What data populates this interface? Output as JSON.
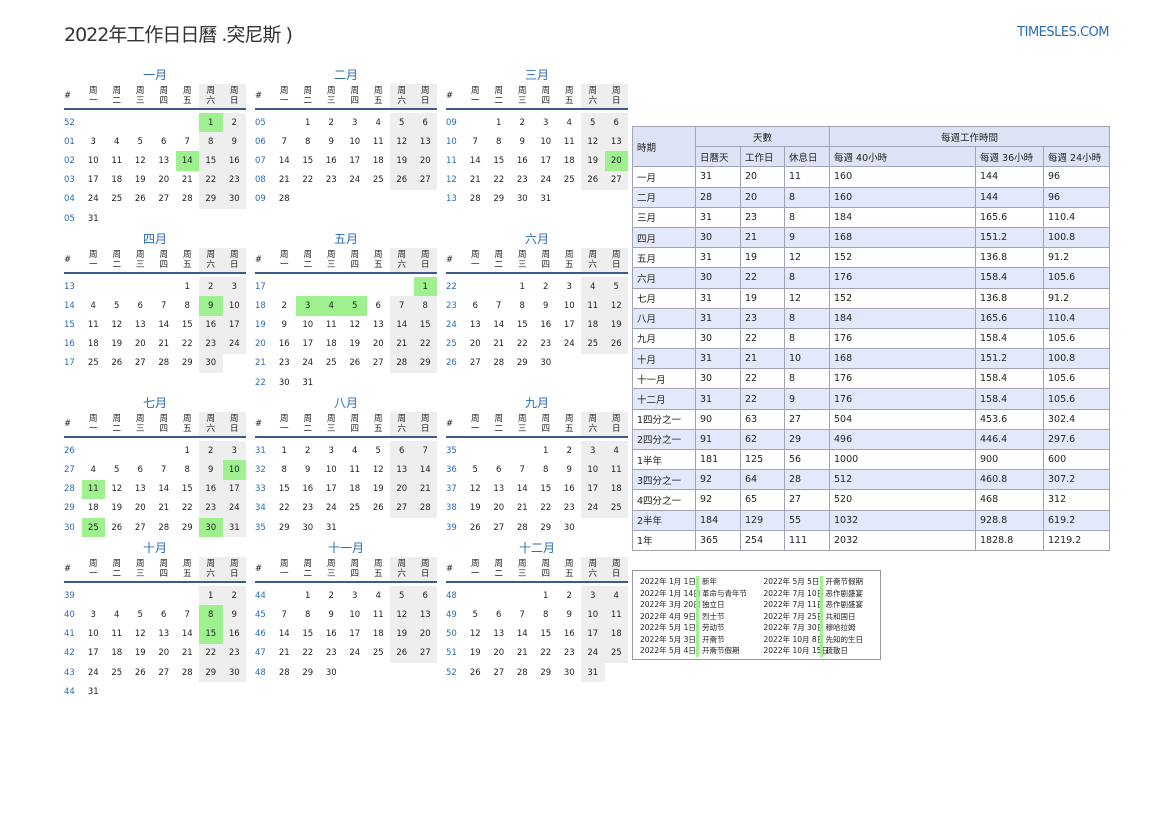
{
  "header": {
    "title": "2022年工作日日曆 .突尼斯 )",
    "site": "TIMESLES.COM"
  },
  "calendar": {
    "week_label": "#",
    "weekdays": [
      "周一",
      "周二",
      "周三",
      "周四",
      "周五",
      "周六",
      "周日"
    ],
    "months": [
      {
        "name": "一月",
        "highlight": [
          1,
          14
        ],
        "weeks": [
          {
            "week": "52",
            "days": [
              null,
              null,
              null,
              null,
              null,
              1,
              2
            ]
          },
          {
            "week": "01",
            "days": [
              3,
              4,
              5,
              6,
              7,
              8,
              9
            ]
          },
          {
            "week": "02",
            "days": [
              10,
              11,
              12,
              13,
              14,
              15,
              16
            ]
          },
          {
            "week": "03",
            "days": [
              17,
              18,
              19,
              20,
              21,
              22,
              23
            ]
          },
          {
            "week": "04",
            "days": [
              24,
              25,
              26,
              27,
              28,
              29,
              30
            ]
          },
          {
            "week": "05",
            "days": [
              31,
              null,
              null,
              null,
              null,
              null,
              null
            ]
          }
        ]
      },
      {
        "name": "二月",
        "highlight": [],
        "weeks": [
          {
            "week": "05",
            "days": [
              null,
              1,
              2,
              3,
              4,
              5,
              6
            ]
          },
          {
            "week": "06",
            "days": [
              7,
              8,
              9,
              10,
              11,
              12,
              13
            ]
          },
          {
            "week": "07",
            "days": [
              14,
              15,
              16,
              17,
              18,
              19,
              20
            ]
          },
          {
            "week": "08",
            "days": [
              21,
              22,
              23,
              24,
              25,
              26,
              27
            ]
          },
          {
            "week": "09",
            "days": [
              28,
              null,
              null,
              null,
              null,
              null,
              null
            ]
          }
        ]
      },
      {
        "name": "三月",
        "highlight": [
          20
        ],
        "weeks": [
          {
            "week": "09",
            "days": [
              null,
              1,
              2,
              3,
              4,
              5,
              6
            ]
          },
          {
            "week": "10",
            "days": [
              7,
              8,
              9,
              10,
              11,
              12,
              13
            ]
          },
          {
            "week": "11",
            "days": [
              14,
              15,
              16,
              17,
              18,
              19,
              20
            ]
          },
          {
            "week": "12",
            "days": [
              21,
              22,
              23,
              24,
              25,
              26,
              27
            ]
          },
          {
            "week": "13",
            "days": [
              28,
              29,
              30,
              31,
              null,
              null,
              null
            ]
          }
        ]
      },
      {
        "name": "四月",
        "highlight": [
          9
        ],
        "weeks": [
          {
            "week": "13",
            "days": [
              null,
              null,
              null,
              null,
              1,
              2,
              3
            ]
          },
          {
            "week": "14",
            "days": [
              4,
              5,
              6,
              7,
              8,
              9,
              10
            ]
          },
          {
            "week": "15",
            "days": [
              11,
              12,
              13,
              14,
              15,
              16,
              17
            ]
          },
          {
            "week": "16",
            "days": [
              18,
              19,
              20,
              21,
              22,
              23,
              24
            ]
          },
          {
            "week": "17",
            "days": [
              25,
              26,
              27,
              28,
              29,
              30,
              null
            ]
          }
        ]
      },
      {
        "name": "五月",
        "highlight": [
          1,
          3,
          4,
          5
        ],
        "weeks": [
          {
            "week": "17",
            "days": [
              null,
              null,
              null,
              null,
              null,
              null,
              1
            ]
          },
          {
            "week": "18",
            "days": [
              2,
              3,
              4,
              5,
              6,
              7,
              8
            ]
          },
          {
            "week": "19",
            "days": [
              9,
              10,
              11,
              12,
              13,
              14,
              15
            ]
          },
          {
            "week": "20",
            "days": [
              16,
              17,
              18,
              19,
              20,
              21,
              22
            ]
          },
          {
            "week": "21",
            "days": [
              23,
              24,
              25,
              26,
              27,
              28,
              29
            ]
          },
          {
            "week": "22",
            "days": [
              30,
              31,
              null,
              null,
              null,
              null,
              null
            ]
          }
        ]
      },
      {
        "name": "六月",
        "highlight": [],
        "weeks": [
          {
            "week": "22",
            "days": [
              null,
              null,
              1,
              2,
              3,
              4,
              5
            ]
          },
          {
            "week": "23",
            "days": [
              6,
              7,
              8,
              9,
              10,
              11,
              12
            ]
          },
          {
            "week": "24",
            "days": [
              13,
              14,
              15,
              16,
              17,
              18,
              19
            ]
          },
          {
            "week": "25",
            "days": [
              20,
              21,
              22,
              23,
              24,
              25,
              26
            ]
          },
          {
            "week": "26",
            "days": [
              27,
              28,
              29,
              30,
              null,
              null,
              null
            ]
          }
        ]
      },
      {
        "name": "七月",
        "highlight": [
          10,
          11,
          25,
          30
        ],
        "weeks": [
          {
            "week": "26",
            "days": [
              null,
              null,
              null,
              null,
              1,
              2,
              3
            ]
          },
          {
            "week": "27",
            "days": [
              4,
              5,
              6,
              7,
              8,
              9,
              10
            ]
          },
          {
            "week": "28",
            "days": [
              11,
              12,
              13,
              14,
              15,
              16,
              17
            ]
          },
          {
            "week": "29",
            "days": [
              18,
              19,
              20,
              21,
              22,
              23,
              24
            ]
          },
          {
            "week": "30",
            "days": [
              25,
              26,
              27,
              28,
              29,
              30,
              31
            ]
          }
        ]
      },
      {
        "name": "八月",
        "highlight": [],
        "weeks": [
          {
            "week": "31",
            "days": [
              1,
              2,
              3,
              4,
              5,
              6,
              7
            ]
          },
          {
            "week": "32",
            "days": [
              8,
              9,
              10,
              11,
              12,
              13,
              14
            ]
          },
          {
            "week": "33",
            "days": [
              15,
              16,
              17,
              18,
              19,
              20,
              21
            ]
          },
          {
            "week": "34",
            "days": [
              22,
              23,
              24,
              25,
              26,
              27,
              28
            ]
          },
          {
            "week": "35",
            "days": [
              29,
              30,
              31,
              null,
              null,
              null,
              null
            ]
          }
        ]
      },
      {
        "name": "九月",
        "highlight": [],
        "weeks": [
          {
            "week": "35",
            "days": [
              null,
              null,
              null,
              1,
              2,
              3,
              4
            ]
          },
          {
            "week": "36",
            "days": [
              5,
              6,
              7,
              8,
              9,
              10,
              11
            ]
          },
          {
            "week": "37",
            "days": [
              12,
              13,
              14,
              15,
              16,
              17,
              18
            ]
          },
          {
            "week": "38",
            "days": [
              19,
              20,
              21,
              22,
              23,
              24,
              25
            ]
          },
          {
            "week": "39",
            "days": [
              26,
              27,
              28,
              29,
              30,
              null,
              null
            ]
          }
        ]
      },
      {
        "name": "十月",
        "highlight": [
          8,
          15
        ],
        "weeks": [
          {
            "week": "39",
            "days": [
              null,
              null,
              null,
              null,
              null,
              1,
              2
            ]
          },
          {
            "week": "40",
            "days": [
              3,
              4,
              5,
              6,
              7,
              8,
              9
            ]
          },
          {
            "week": "41",
            "days": [
              10,
              11,
              12,
              13,
              14,
              15,
              16
            ]
          },
          {
            "week": "42",
            "days": [
              17,
              18,
              19,
              20,
              21,
              22,
              23
            ]
          },
          {
            "week": "43",
            "days": [
              24,
              25,
              26,
              27,
              28,
              29,
              30
            ]
          },
          {
            "week": "44",
            "days": [
              31,
              null,
              null,
              null,
              null,
              null,
              null
            ]
          }
        ]
      },
      {
        "name": "十一月",
        "highlight": [],
        "weeks": [
          {
            "week": "44",
            "days": [
              null,
              1,
              2,
              3,
              4,
              5,
              6
            ]
          },
          {
            "week": "45",
            "days": [
              7,
              8,
              9,
              10,
              11,
              12,
              13
            ]
          },
          {
            "week": "46",
            "days": [
              14,
              15,
              16,
              17,
              18,
              19,
              20
            ]
          },
          {
            "week": "47",
            "days": [
              21,
              22,
              23,
              24,
              25,
              26,
              27
            ]
          },
          {
            "week": "48",
            "days": [
              28,
              29,
              30,
              null,
              null,
              null,
              null
            ]
          }
        ]
      },
      {
        "name": "十二月",
        "highlight": [],
        "weeks": [
          {
            "week": "48",
            "days": [
              null,
              null,
              null,
              1,
              2,
              3,
              4
            ]
          },
          {
            "week": "49",
            "days": [
              5,
              6,
              7,
              8,
              9,
              10,
              11
            ]
          },
          {
            "week": "50",
            "days": [
              12,
              13,
              14,
              15,
              16,
              17,
              18
            ]
          },
          {
            "week": "51",
            "days": [
              19,
              20,
              21,
              22,
              23,
              24,
              25
            ]
          },
          {
            "week": "52",
            "days": [
              26,
              27,
              28,
              29,
              30,
              31,
              null
            ]
          }
        ]
      }
    ]
  },
  "table": {
    "period_label": "時期",
    "days_label": "天數",
    "hours_label": "每週工作時間",
    "columns": [
      "日曆天",
      "工作日",
      "休息日",
      "每週 40小時",
      "每週 36小時",
      "每週 24小時"
    ],
    "rows": [
      [
        "一月",
        31,
        20,
        11,
        160,
        144,
        96
      ],
      [
        "二月",
        28,
        20,
        8,
        160,
        144,
        96
      ],
      [
        "三月",
        31,
        23,
        8,
        184,
        165.6,
        110.4
      ],
      [
        "四月",
        30,
        21,
        9,
        168,
        151.2,
        100.8
      ],
      [
        "五月",
        31,
        19,
        12,
        152,
        136.8,
        91.2
      ],
      [
        "六月",
        30,
        22,
        8,
        176,
        158.4,
        105.6
      ],
      [
        "七月",
        31,
        19,
        12,
        152,
        136.8,
        91.2
      ],
      [
        "八月",
        31,
        23,
        8,
        184,
        165.6,
        110.4
      ],
      [
        "九月",
        30,
        22,
        8,
        176,
        158.4,
        105.6
      ],
      [
        "十月",
        31,
        21,
        10,
        168,
        151.2,
        100.8
      ],
      [
        "十一月",
        30,
        22,
        8,
        176,
        158.4,
        105.6
      ],
      [
        "十二月",
        31,
        22,
        9,
        176,
        158.4,
        105.6
      ],
      [
        "1四分之一",
        90,
        63,
        27,
        504,
        453.6,
        302.4
      ],
      [
        "2四分之一",
        91,
        62,
        29,
        496,
        446.4,
        297.6
      ],
      [
        "1半年",
        181,
        125,
        56,
        1000,
        900,
        600
      ],
      [
        "3四分之一",
        92,
        64,
        28,
        512,
        460.8,
        307.2
      ],
      [
        "4四分之一",
        92,
        65,
        27,
        520,
        468,
        312
      ],
      [
        "2半年",
        184,
        129,
        55,
        1032,
        928.8,
        619.2
      ],
      [
        "1年",
        365,
        254,
        111,
        2032,
        1828.8,
        1219.2
      ]
    ]
  },
  "holidays": [
    {
      "date": "2022年 1月 1日",
      "name": "新年"
    },
    {
      "date": "2022年 1月 14日",
      "name": "革命与青年节"
    },
    {
      "date": "2022年 3月 20日",
      "name": "独立日"
    },
    {
      "date": "2022年 4月 9日",
      "name": "烈士节"
    },
    {
      "date": "2022年 5月 1日",
      "name": "劳动节"
    },
    {
      "date": "2022年 5月 3日",
      "name": "开斋节"
    },
    {
      "date": "2022年 5月 4日",
      "name": "开斋节假期"
    },
    {
      "date": "2022年 5月 5日",
      "name": "开斋节假期"
    },
    {
      "date": "2022年 7月 10日",
      "name": "恶作剧盛宴"
    },
    {
      "date": "2022年 7月 11日",
      "name": "恶作剧盛宴"
    },
    {
      "date": "2022年 7月 25日",
      "name": "共和国日"
    },
    {
      "date": "2022年 7月 30日",
      "name": "穆哈拉姆"
    },
    {
      "date": "2022年 10月 8日",
      "name": "先知的生日"
    },
    {
      "date": "2022年 10月 15日",
      "name": "疏散日"
    }
  ]
}
